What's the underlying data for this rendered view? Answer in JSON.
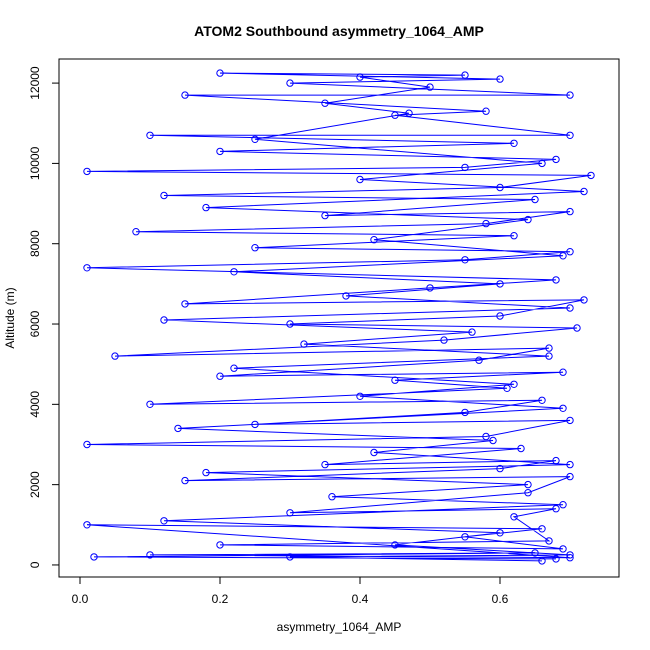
{
  "chart_data": {
    "type": "scatter",
    "title": "ATOM2 Southbound asymmetry_1064_AMP",
    "xlabel": "asymmetry_1064_AMP",
    "ylabel": "Altitude (m)",
    "xlim": [
      -0.03,
      0.77
    ],
    "ylim": [
      -300,
      12600
    ],
    "x_ticks": [
      {
        "value": 0.0,
        "label": "0.0"
      },
      {
        "value": 0.2,
        "label": "0.2"
      },
      {
        "value": 0.4,
        "label": "0.4"
      },
      {
        "value": 0.6,
        "label": "0.6"
      }
    ],
    "y_ticks": [
      {
        "value": 0,
        "label": "0"
      },
      {
        "value": 2000,
        "label": "2000"
      },
      {
        "value": 4000,
        "label": "4000"
      },
      {
        "value": 6000,
        "label": "6000"
      },
      {
        "value": 8000,
        "label": "8000"
      },
      {
        "value": 10000,
        "label": "10000"
      },
      {
        "value": 12000,
        "label": "12000"
      }
    ],
    "marker": "open-circle",
    "connected": true,
    "grid": false,
    "color": "#0000ff",
    "series": [
      {
        "points": [
          [
            0.68,
            150
          ],
          [
            0.02,
            200
          ],
          [
            0.65,
            300
          ],
          [
            0.1,
            250
          ],
          [
            0.7,
            180
          ],
          [
            0.01,
            1000
          ],
          [
            0.66,
            900
          ],
          [
            0.55,
            700
          ],
          [
            0.69,
            400
          ],
          [
            0.2,
            500
          ],
          [
            0.67,
            600
          ],
          [
            0.62,
            1200
          ],
          [
            0.68,
            1400
          ],
          [
            0.3,
            1300
          ],
          [
            0.64,
            1800
          ],
          [
            0.7,
            2200
          ],
          [
            0.15,
            2100
          ],
          [
            0.6,
            2400
          ],
          [
            0.68,
            2600
          ],
          [
            0.35,
            2500
          ],
          [
            0.63,
            2900
          ],
          [
            0.01,
            3000
          ],
          [
            0.58,
            3200
          ],
          [
            0.7,
            3600
          ],
          [
            0.25,
            3500
          ],
          [
            0.55,
            3800
          ],
          [
            0.66,
            4100
          ],
          [
            0.1,
            4000
          ],
          [
            0.61,
            4400
          ],
          [
            0.45,
            4600
          ],
          [
            0.69,
            4800
          ],
          [
            0.2,
            4700
          ],
          [
            0.57,
            5100
          ],
          [
            0.67,
            5400
          ],
          [
            0.05,
            5200
          ],
          [
            0.52,
            5600
          ],
          [
            0.71,
            5900
          ],
          [
            0.3,
            6000
          ],
          [
            0.6,
            6200
          ],
          [
            0.72,
            6600
          ],
          [
            0.15,
            6500
          ],
          [
            0.5,
            6900
          ],
          [
            0.68,
            7100
          ],
          [
            0.01,
            7400
          ],
          [
            0.55,
            7600
          ],
          [
            0.7,
            7800
          ],
          [
            0.25,
            7900
          ],
          [
            0.62,
            8200
          ],
          [
            0.08,
            8300
          ],
          [
            0.58,
            8500
          ],
          [
            0.7,
            8800
          ],
          [
            0.35,
            8700
          ],
          [
            0.65,
            9100
          ],
          [
            0.12,
            9200
          ],
          [
            0.6,
            9400
          ],
          [
            0.73,
            9700
          ],
          [
            0.01,
            9800
          ],
          [
            0.55,
            9900
          ],
          [
            0.68,
            10100
          ],
          [
            0.2,
            10300
          ],
          [
            0.62,
            10500
          ],
          [
            0.1,
            10700
          ],
          [
            0.7,
            10700
          ],
          [
            0.45,
            11200
          ],
          [
            0.58,
            11300
          ],
          [
            0.15,
            11700
          ],
          [
            0.7,
            11700
          ],
          [
            0.3,
            12000
          ],
          [
            0.6,
            12100
          ],
          [
            0.2,
            12250
          ],
          [
            0.55,
            12200
          ],
          [
            0.4,
            12150
          ],
          [
            0.5,
            11900
          ],
          [
            0.35,
            11500
          ],
          [
            0.47,
            11250
          ],
          [
            0.25,
            10600
          ],
          [
            0.66,
            10000
          ],
          [
            0.4,
            9600
          ],
          [
            0.72,
            9300
          ],
          [
            0.18,
            8900
          ],
          [
            0.64,
            8600
          ],
          [
            0.42,
            8100
          ],
          [
            0.69,
            7700
          ],
          [
            0.22,
            7300
          ],
          [
            0.6,
            7000
          ],
          [
            0.38,
            6700
          ],
          [
            0.7,
            6400
          ],
          [
            0.12,
            6100
          ],
          [
            0.56,
            5800
          ],
          [
            0.32,
            5500
          ],
          [
            0.67,
            5200
          ],
          [
            0.22,
            4900
          ],
          [
            0.62,
            4500
          ],
          [
            0.4,
            4200
          ],
          [
            0.69,
            3900
          ],
          [
            0.14,
            3400
          ],
          [
            0.59,
            3100
          ],
          [
            0.42,
            2800
          ],
          [
            0.7,
            2500
          ],
          [
            0.18,
            2300
          ],
          [
            0.64,
            2000
          ],
          [
            0.36,
            1700
          ],
          [
            0.69,
            1500
          ],
          [
            0.12,
            1100
          ],
          [
            0.6,
            800
          ],
          [
            0.45,
            500
          ],
          [
            0.7,
            250
          ],
          [
            0.3,
            200
          ],
          [
            0.66,
            100
          ]
        ]
      }
    ]
  }
}
